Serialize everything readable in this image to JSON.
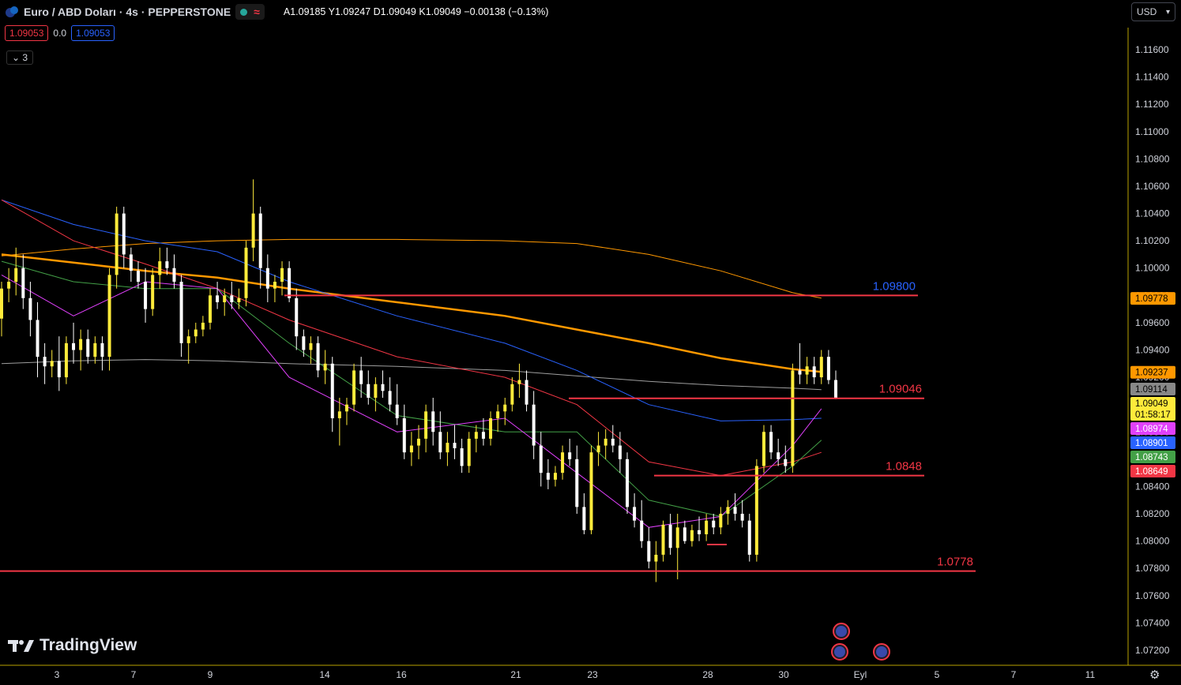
{
  "header": {
    "title": "Euro / ABD Doları · 4s · PEPPERSTONE",
    "ohlc": {
      "open": "A1.09185",
      "high": "Y1.09247",
      "low": "D1.09049",
      "close": "K1.09049",
      "change": "−0.00138 (−0.13%)"
    }
  },
  "trade": {
    "sell": "1.09053",
    "spread": "0.0",
    "buy": "1.09053"
  },
  "indicator_toggle": "3",
  "currency": "USD",
  "brand": "TradingView",
  "colors": {
    "bull": "#ffeb3b",
    "bear": "#ffffff",
    "level": "#f23645",
    "axis_text": "#d1d4dc",
    "border": "#b8a200"
  },
  "chart_data": {
    "type": "candlestick",
    "ylim": [
      1.071,
      1.1175
    ],
    "y_ticks": [
      "1.11600",
      "1.11400",
      "1.11200",
      "1.11000",
      "1.10800",
      "1.10600",
      "1.10400",
      "1.10200",
      "1.10000",
      "1.09800",
      "1.09600",
      "1.09400",
      "1.09200",
      "1.09000",
      "1.08800",
      "1.08600",
      "1.08400",
      "1.08200",
      "1.08000",
      "1.07800",
      "1.07600",
      "1.07400",
      "1.07200"
    ],
    "x_ticks": [
      "3",
      "7",
      "9",
      "14",
      "16",
      "21",
      "23",
      "28",
      "30",
      "Eyl",
      "5",
      "7",
      "11"
    ],
    "horizontal_levels": [
      {
        "label": "1.09800",
        "value": 1.098,
        "color": "#f23645",
        "label_color": "#2962ff"
      },
      {
        "label": "1.09046",
        "value": 1.09046,
        "color": "#f23645",
        "label_color": "#f23645"
      },
      {
        "label": "1.0848",
        "value": 1.0848,
        "color": "#f23645",
        "label_color": "#f23645"
      },
      {
        "label": "1.0778",
        "value": 1.0778,
        "color": "#f23645",
        "label_color": "#f23645"
      }
    ],
    "price_badges": [
      {
        "label": "1.09778",
        "value": 1.09778,
        "bg": "#ff9800",
        "fg": "#000000"
      },
      {
        "label": "1.09237",
        "value": 1.09237,
        "bg": "#ff9800",
        "fg": "#000000"
      },
      {
        "label": "1.09114",
        "value": 1.09114,
        "bg": "#888888",
        "fg": "#000000"
      },
      {
        "label": "1.09049",
        "value": 1.09049,
        "bg": "#ffeb3b",
        "fg": "#000000",
        "sub": "01:58:17"
      },
      {
        "label": "1.08974",
        "value": 1.08974,
        "bg": "#e040fb",
        "fg": "#ffffff"
      },
      {
        "label": "1.08901",
        "value": 1.08901,
        "bg": "#2962ff",
        "fg": "#ffffff"
      },
      {
        "label": "1.08743",
        "value": 1.08743,
        "bg": "#43a047",
        "fg": "#ffffff"
      },
      {
        "label": "1.08649",
        "value": 1.08649,
        "bg": "#f23645",
        "fg": "#ffffff"
      }
    ],
    "moving_averages": [
      {
        "color": "#ff9800",
        "width": 1,
        "values": [
          1.1009,
          1.1014,
          1.1018,
          1.102,
          1.1021,
          1.1021,
          1.102,
          1.1018,
          1.101,
          1.0998,
          1.0982,
          1.0978
        ]
      },
      {
        "color": "#ff9800",
        "width": 2.5,
        "values": [
          1.101,
          1.1004,
          1.0998,
          1.0993,
          1.0985,
          1.0975,
          1.0965,
          1.0955,
          1.0945,
          1.0934,
          1.0926,
          1.0924
        ]
      },
      {
        "color": "#9e9e9e",
        "width": 1,
        "values": [
          1.093,
          1.0932,
          1.0933,
          1.0932,
          1.093,
          1.0928,
          1.0925,
          1.0921,
          1.0917,
          1.0914,
          1.0912,
          1.0911
        ]
      },
      {
        "color": "#2962ff",
        "width": 1,
        "values": [
          1.105,
          1.1032,
          1.102,
          1.1012,
          1.099,
          1.0965,
          1.0945,
          1.0925,
          1.09,
          1.0888,
          1.0889,
          1.089
        ]
      },
      {
        "color": "#f23645",
        "width": 1,
        "values": [
          1.105,
          1.102,
          1.1003,
          1.0985,
          1.0962,
          1.0935,
          1.092,
          1.09,
          1.0858,
          1.0848,
          1.0858,
          1.0865
        ]
      },
      {
        "color": "#43a047",
        "width": 1,
        "values": [
          1.1005,
          1.099,
          1.0985,
          1.0985,
          1.0945,
          1.0892,
          1.088,
          1.088,
          1.083,
          1.0818,
          1.0855,
          1.0874
        ]
      },
      {
        "color": "#e040fb",
        "width": 1,
        "values": [
          1.0995,
          1.0965,
          1.099,
          1.0985,
          1.092,
          1.088,
          1.089,
          1.085,
          1.081,
          1.0818,
          1.087,
          1.0897
        ]
      }
    ],
    "ma_x_index": [
      0,
      10,
      20,
      30,
      40,
      55,
      70,
      80,
      90,
      100,
      110,
      114
    ],
    "candles": [
      [
        1.0963,
        1.099,
        1.095,
        1.0985
      ],
      [
        1.0985,
        1.1,
        1.0975,
        1.099
      ],
      [
        1.099,
        1.1015,
        1.098,
        1.1
      ],
      [
        1.1,
        1.101,
        1.097,
        1.0978
      ],
      [
        1.0978,
        1.099,
        1.095,
        1.0962
      ],
      [
        1.0962,
        1.0975,
        1.092,
        1.0935
      ],
      [
        1.0935,
        1.0945,
        1.0915,
        1.0928
      ],
      [
        1.0928,
        1.094,
        1.092,
        1.0932
      ],
      [
        1.0932,
        1.095,
        1.091,
        1.092
      ],
      [
        1.092,
        1.095,
        1.0915,
        1.0945
      ],
      [
        1.0945,
        1.096,
        1.093,
        1.094
      ],
      [
        1.094,
        1.0955,
        1.0925,
        1.0948
      ],
      [
        1.0948,
        1.0955,
        1.093,
        1.0935
      ],
      [
        1.0935,
        1.095,
        1.093,
        1.0945
      ],
      [
        1.0945,
        1.095,
        1.0925,
        1.0935
      ],
      [
        1.0935,
        1.1,
        1.0925,
        1.0995
      ],
      [
        1.0995,
        1.1045,
        1.0985,
        1.104
      ],
      [
        1.104,
        1.1045,
        1.1,
        1.101
      ],
      [
        1.101,
        1.1015,
        1.099,
        1.0998
      ],
      [
        1.0998,
        1.1005,
        1.0985,
        1.099
      ],
      [
        1.099,
        1.1,
        1.096,
        1.097
      ],
      [
        1.097,
        1.1,
        1.0965,
        1.0995
      ],
      [
        1.0995,
        1.1015,
        1.0985,
        1.1005
      ],
      [
        1.1005,
        1.1015,
        1.0995,
        1.1
      ],
      [
        1.1,
        1.101,
        1.0985,
        1.099
      ],
      [
        1.099,
        1.0995,
        1.0935,
        1.0945
      ],
      [
        1.0945,
        1.0955,
        1.093,
        1.095
      ],
      [
        1.095,
        1.096,
        1.0945,
        1.0955
      ],
      [
        1.0955,
        1.0965,
        1.095,
        1.096
      ],
      [
        1.096,
        1.0985,
        1.0955,
        1.098
      ],
      [
        1.098,
        1.099,
        1.097,
        1.0975
      ],
      [
        1.0975,
        1.0985,
        1.0965,
        1.098
      ],
      [
        1.098,
        1.099,
        1.097,
        1.0975
      ],
      [
        1.0975,
        1.0985,
        1.097,
        1.0978
      ],
      [
        1.0978,
        1.102,
        1.0972,
        1.1015
      ],
      [
        1.1015,
        1.1065,
        1.1005,
        1.104
      ],
      [
        1.104,
        1.1045,
        1.0985,
        1.1
      ],
      [
        1.1,
        1.101,
        1.0975,
        1.0985
      ],
      [
        1.0985,
        1.0995,
        1.0975,
        1.099
      ],
      [
        1.099,
        1.1005,
        1.098,
        1.1
      ],
      [
        1.1,
        1.1005,
        1.0975,
        1.0978
      ],
      [
        1.0978,
        1.0985,
        1.094,
        1.095
      ],
      [
        1.095,
        1.0955,
        1.0935,
        1.094
      ],
      [
        1.094,
        1.095,
        1.093,
        1.0945
      ],
      [
        1.0945,
        1.095,
        1.092,
        1.0925
      ],
      [
        1.0925,
        1.094,
        1.0915,
        1.093
      ],
      [
        1.093,
        1.0935,
        1.088,
        1.089
      ],
      [
        1.089,
        1.0905,
        1.087,
        1.0895
      ],
      [
        1.0895,
        1.0905,
        1.0885,
        1.09
      ],
      [
        1.09,
        1.093,
        1.0895,
        1.0925
      ],
      [
        1.0925,
        1.0935,
        1.0905,
        1.0915
      ],
      [
        1.0915,
        1.0925,
        1.09,
        1.0905
      ],
      [
        1.0905,
        1.092,
        1.0895,
        1.0915
      ],
      [
        1.0915,
        1.0925,
        1.0905,
        1.091
      ],
      [
        1.091,
        1.092,
        1.0895,
        1.09
      ],
      [
        1.09,
        1.0915,
        1.0885,
        1.089
      ],
      [
        1.089,
        1.09,
        1.086,
        1.0865
      ],
      [
        1.0865,
        1.088,
        1.0855,
        1.087
      ],
      [
        1.087,
        1.0885,
        1.086,
        1.0875
      ],
      [
        1.0875,
        1.09,
        1.0865,
        1.0895
      ],
      [
        1.0895,
        1.0905,
        1.087,
        1.088
      ],
      [
        1.088,
        1.0895,
        1.086,
        1.0865
      ],
      [
        1.0865,
        1.088,
        1.0855,
        1.0872
      ],
      [
        1.0872,
        1.0885,
        1.086,
        1.0868
      ],
      [
        1.0868,
        1.0875,
        1.085,
        1.0855
      ],
      [
        1.0855,
        1.088,
        1.085,
        1.0875
      ],
      [
        1.0875,
        1.0885,
        1.0865,
        1.088
      ],
      [
        1.088,
        1.089,
        1.087,
        1.0875
      ],
      [
        1.0875,
        1.0895,
        1.087,
        1.089
      ],
      [
        1.089,
        1.09,
        1.088,
        1.0895
      ],
      [
        1.0895,
        1.0905,
        1.0885,
        1.09
      ],
      [
        1.09,
        1.092,
        1.0895,
        1.0915
      ],
      [
        1.0915,
        1.093,
        1.0905,
        1.0918
      ],
      [
        1.0918,
        1.0925,
        1.0895,
        1.09
      ],
      [
        1.09,
        1.091,
        1.086,
        1.087
      ],
      [
        1.087,
        1.088,
        1.084,
        1.085
      ],
      [
        1.085,
        1.086,
        1.0838,
        1.0845
      ],
      [
        1.0845,
        1.0855,
        1.084,
        1.085
      ],
      [
        1.085,
        1.087,
        1.0845,
        1.0865
      ],
      [
        1.0865,
        1.0875,
        1.0855,
        1.086
      ],
      [
        1.086,
        1.087,
        1.082,
        1.0825
      ],
      [
        1.0825,
        1.0835,
        1.0805,
        1.0808
      ],
      [
        1.0808,
        1.087,
        1.0805,
        1.0865
      ],
      [
        1.0865,
        1.088,
        1.0855,
        1.087
      ],
      [
        1.087,
        1.0882,
        1.086,
        1.0875
      ],
      [
        1.0875,
        1.0885,
        1.0865,
        1.087
      ],
      [
        1.087,
        1.088,
        1.085,
        1.086
      ],
      [
        1.086,
        1.0865,
        1.082,
        1.0825
      ],
      [
        1.0825,
        1.0835,
        1.081,
        1.0815
      ],
      [
        1.0815,
        1.083,
        1.0795,
        1.08
      ],
      [
        1.08,
        1.081,
        1.078,
        1.0785
      ],
      [
        1.0785,
        1.08,
        1.077,
        1.079
      ],
      [
        1.079,
        1.0815,
        1.0785,
        1.0812
      ],
      [
        1.0812,
        1.082,
        1.079,
        1.0795
      ],
      [
        1.0795,
        1.082,
        1.0772,
        1.081
      ],
      [
        1.081,
        1.0815,
        1.0798,
        1.08
      ],
      [
        1.08,
        1.0812,
        1.0796,
        1.0808
      ],
      [
        1.0808,
        1.0818,
        1.08,
        1.0805
      ],
      [
        1.0805,
        1.082,
        1.08,
        1.0815
      ],
      [
        1.0815,
        1.082,
        1.0805,
        1.081
      ],
      [
        1.081,
        1.0825,
        1.0805,
        1.082
      ],
      [
        1.082,
        1.083,
        1.0812,
        1.0825
      ],
      [
        1.0825,
        1.0835,
        1.0815,
        1.082
      ],
      [
        1.082,
        1.083,
        1.081,
        1.0815
      ],
      [
        1.0815,
        1.082,
        1.0785,
        1.079
      ],
      [
        1.079,
        1.086,
        1.0785,
        1.0855
      ],
      [
        1.0855,
        1.0885,
        1.085,
        1.088
      ],
      [
        1.088,
        1.0885,
        1.086,
        1.0865
      ],
      [
        1.0865,
        1.0875,
        1.0855,
        1.086
      ],
      [
        1.086,
        1.087,
        1.085,
        1.0855
      ],
      [
        1.0855,
        1.093,
        1.085,
        1.0925
      ],
      [
        1.0925,
        1.0945,
        1.0915,
        1.0922
      ],
      [
        1.0922,
        1.0935,
        1.0915,
        1.0928
      ],
      [
        1.0928,
        1.0935,
        1.0915,
        1.092
      ],
      [
        1.092,
        1.094,
        1.0915,
        1.0935
      ],
      [
        1.0935,
        1.094,
        1.0915,
        1.0918
      ],
      [
        1.0918,
        1.0925,
        1.0904,
        1.0905
      ]
    ]
  }
}
